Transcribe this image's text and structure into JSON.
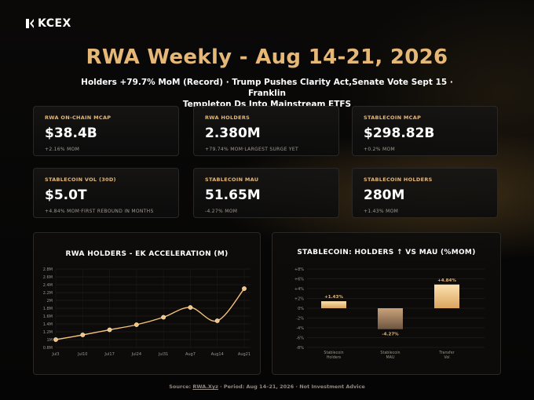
{
  "brand": {
    "name": "KCEX"
  },
  "header": {
    "title": "RWA Weekly - Aug 14-21, 2026",
    "subtitle_line1": "Holders +79.7% MoM (Record) · Trump Pushes Clarity Act,Senate Vote Sept 15 · Franklin",
    "subtitle_line2": "Templeton Ds Into Mainstream ETFS"
  },
  "cards": [
    {
      "label": "RWA ON-CHAIN MCAP",
      "value": "$38.4B",
      "sub": "+2.16% MOM"
    },
    {
      "label": "RWA HOLDERS",
      "value": "2.380M",
      "sub": "+79.74% MOM·LARGEST SURGE YET"
    },
    {
      "label": "STABLECOIN MCAP",
      "value": "$298.82B",
      "sub": "+0.2% MOM"
    },
    {
      "label": "STABLECOIN VOL (30D)",
      "value": "$5.0T",
      "sub": "+4.84% MOM·FIRST REBOUND IN MONTHS"
    },
    {
      "label": "STABLECOIN MAU",
      "value": "51.65M",
      "sub": "-4.27% MOM"
    },
    {
      "label": "STABLECOIN HOLDERS",
      "value": "280M",
      "sub": "+1.43% MOM"
    }
  ],
  "chart_data": [
    {
      "type": "line",
      "title": "RWA HOLDERS - EK ACCELERATION (M)",
      "x": [
        "Jul3",
        "Jul10",
        "Jul17",
        "Jul24",
        "Jul31",
        "Aug7",
        "Aug14",
        "Aug21"
      ],
      "values": [
        1.0,
        1.12,
        1.25,
        1.38,
        1.57,
        1.82,
        1.48,
        2.3
      ],
      "yticks": [
        "0.8M",
        "1M",
        "1.2M",
        "1.4M",
        "1.6M",
        "1.8M",
        "2M",
        "2.2M",
        "2.4M",
        "2.6M",
        "2.8M"
      ],
      "ylim": [
        0.8,
        2.8
      ],
      "grid": true,
      "color": "#f5c27a"
    },
    {
      "type": "bar",
      "title": "STABLECOIN: HOLDERS ↑ VS MAU (%MOM)",
      "categories": [
        [
          "Stablecoin",
          "Holders"
        ],
        [
          "Stablecoin",
          "MAU"
        ],
        [
          "Transfer",
          "Vol"
        ]
      ],
      "values": [
        1.43,
        -4.27,
        4.84
      ],
      "data_labels": [
        "+1.43%",
        "-4.27%",
        "+4.84%"
      ],
      "yticks": [
        "-8%",
        "-6%",
        "-4%",
        "-2%",
        "0%",
        "+2%",
        "+4%",
        "+6%",
        "+8%"
      ],
      "ylim": [
        -8,
        8
      ],
      "grid": true,
      "colors": {
        "positive_top": "#fde1b0",
        "positive_bottom": "#d9a55e",
        "negative_top": "#c9a27a",
        "negative_bottom": "#6e5540"
      }
    }
  ],
  "footer": {
    "prefix": "Source: ",
    "source": "RWA.Xyz",
    "suffix": " · Period: Aug 14–21, 2026 · Not Investment Advice"
  }
}
